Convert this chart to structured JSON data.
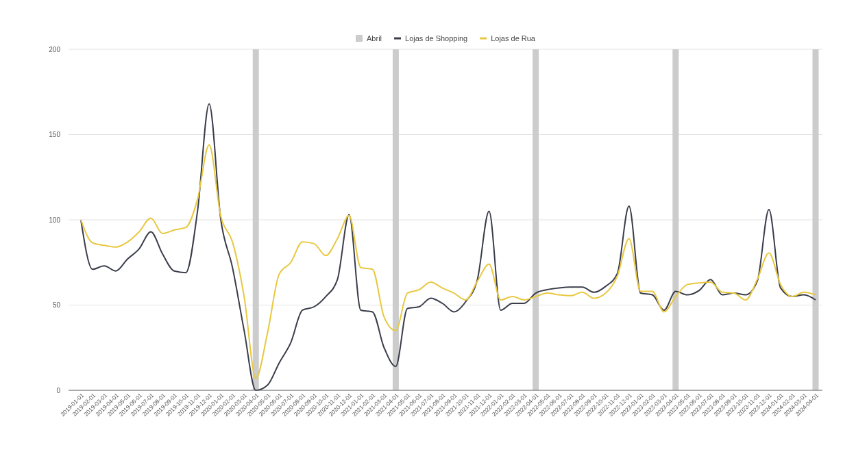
{
  "chart_data": {
    "type": "line",
    "categories": [
      "2019-01-01",
      "2019-02-01",
      "2019-03-01",
      "2019-04-01",
      "2019-05-01",
      "2019-06-01",
      "2019-07-01",
      "2019-08-01",
      "2019-09-01",
      "2019-10-01",
      "2019-11-01",
      "2019-12-01",
      "2020-01-01",
      "2020-02-01",
      "2020-03-01",
      "2020-04-01",
      "2020-05-01",
      "2020-06-01",
      "2020-07-01",
      "2020-08-01",
      "2020-09-01",
      "2020-10-01",
      "2020-11-01",
      "2020-12-01",
      "2021-01-01",
      "2021-02-01",
      "2021-03-01",
      "2021-04-01",
      "2021-05-01",
      "2021-06-01",
      "2021-07-01",
      "2021-08-01",
      "2021-09-01",
      "2021-10-01",
      "2021-11-01",
      "2021-12-01",
      "2022-01-01",
      "2022-02-01",
      "2022-03-01",
      "2022-04-01",
      "2022-05-01",
      "2022-06-01",
      "2022-07-01",
      "2022-08-01",
      "2022-09-01",
      "2022-10-01",
      "2022-11-01",
      "2022-12-01",
      "2023-01-01",
      "2023-02-01",
      "2023-03-01",
      "2023-04-01",
      "2023-05-01",
      "2023-06-01",
      "2023-07-01",
      "2023-08-01",
      "2023-09-01",
      "2023-10-01",
      "2023-11-01",
      "2023-12-01",
      "2024-01-01",
      "2024-02-01",
      "2024-03-01",
      "2024-04-01"
    ],
    "series": [
      {
        "name": "Abril",
        "type": "bar",
        "color": "#cccccc",
        "values": [
          null,
          null,
          null,
          null,
          null,
          null,
          null,
          null,
          null,
          null,
          null,
          null,
          null,
          null,
          null,
          200,
          null,
          null,
          null,
          null,
          null,
          null,
          null,
          null,
          null,
          null,
          null,
          200,
          null,
          null,
          null,
          null,
          null,
          null,
          null,
          null,
          null,
          null,
          null,
          200,
          null,
          null,
          null,
          null,
          null,
          null,
          null,
          null,
          null,
          null,
          null,
          200,
          null,
          null,
          null,
          null,
          null,
          null,
          null,
          null,
          null,
          null,
          null,
          200
        ]
      },
      {
        "name": "Lojas de Shopping",
        "color": "#3a3d4a",
        "values": [
          100,
          71,
          73,
          70,
          77,
          83,
          93,
          80,
          70,
          69,
          105,
          168,
          100,
          72,
          35,
          0,
          3,
          16,
          28,
          47,
          49,
          55,
          65,
          103,
          47,
          46,
          25,
          14,
          48,
          49,
          54,
          51,
          46,
          52,
          65,
          105,
          47,
          51,
          51,
          57,
          59,
          60,
          60.5,
          60.5,
          57.5,
          61,
          68.5,
          108,
          57,
          56,
          47,
          58,
          56,
          58.5,
          65,
          56,
          57,
          56,
          64,
          106,
          60,
          55,
          56,
          53
        ]
      },
      {
        "name": "Lojas de Rua",
        "color": "#e8c840",
        "values": [
          100,
          86.5,
          85,
          84,
          87,
          93,
          101,
          92,
          94,
          95.5,
          112,
          144,
          102,
          87,
          55,
          7,
          33.5,
          68,
          75,
          87,
          86,
          79,
          89,
          102.5,
          72,
          71,
          43,
          35,
          57,
          59,
          63.5,
          60,
          57,
          53,
          64,
          74,
          53,
          55,
          53,
          55,
          57,
          56,
          55.5,
          57.5,
          54,
          57,
          67,
          89,
          58,
          58,
          46,
          55,
          62,
          63,
          63.5,
          57.5,
          57,
          53,
          65,
          80.5,
          62,
          55,
          57.5,
          56
        ]
      }
    ],
    "ylim": [
      0,
      200
    ],
    "yticks": [
      0,
      50,
      100,
      150,
      200
    ],
    "grid": "y",
    "legend": "top",
    "line_style": "solid",
    "marker": "none"
  }
}
